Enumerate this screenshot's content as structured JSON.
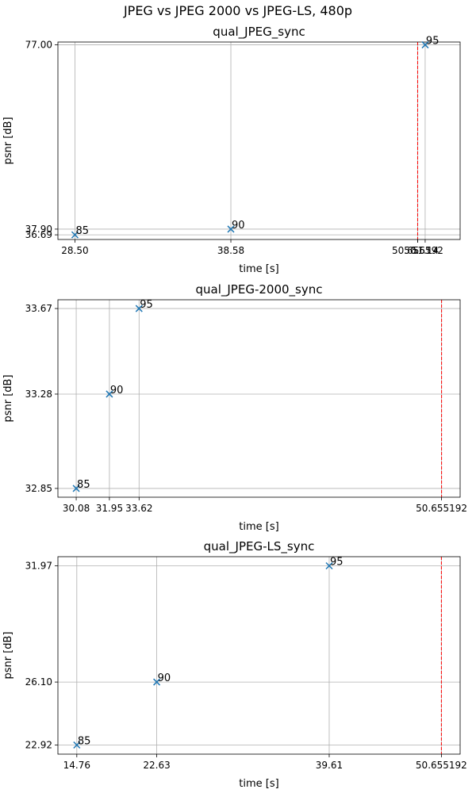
{
  "figure_title": "JPEG vs JPEG 2000 vs JPEG-LS, 480p",
  "chart_data": [
    {
      "type": "scatter",
      "title": "qual_JPEG_sync",
      "xlabel": "time [s]",
      "ylabel": "psnr [dB]",
      "xlim": [
        27.4,
        53.4
      ],
      "ylim": [
        35.7,
        77.6
      ],
      "x_ticks": [
        "28.50",
        "38.58",
        "50.655192",
        "50.65",
        "51.14"
      ],
      "y_ticks": [
        "77.00",
        "37.90",
        "36.69"
      ],
      "x_tick_values": [
        28.5,
        38.58,
        50.655192,
        50.65,
        51.14
      ],
      "y_tick_values": [
        77.0,
        37.9,
        36.69
      ],
      "points": [
        {
          "x": 28.5,
          "y": 36.69,
          "label": "85"
        },
        {
          "x": 38.58,
          "y": 37.9,
          "label": "90"
        },
        {
          "x": 51.14,
          "y": 77.0,
          "label": "95"
        }
      ],
      "vline": {
        "x": 50.655192,
        "color": "#ff0000",
        "style": "dashed"
      },
      "grid": true,
      "marker": "x",
      "marker_color": "#1f77b4"
    },
    {
      "type": "scatter",
      "title": "qual_JPEG-2000_sync",
      "xlabel": "time [s]",
      "ylabel": "psnr [dB]",
      "xlim": [
        29.05,
        51.7
      ],
      "ylim": [
        32.81,
        33.71
      ],
      "x_ticks": [
        "30.08",
        "31.95",
        "33.62",
        "50.655192"
      ],
      "y_ticks": [
        "33.67",
        "33.28",
        "32.85"
      ],
      "x_tick_values": [
        30.08,
        31.95,
        33.62,
        50.655192
      ],
      "y_tick_values": [
        33.67,
        33.28,
        32.85
      ],
      "points": [
        {
          "x": 30.08,
          "y": 32.85,
          "label": "85"
        },
        {
          "x": 31.95,
          "y": 33.28,
          "label": "90"
        },
        {
          "x": 33.62,
          "y": 33.67,
          "label": "95"
        }
      ],
      "vline": {
        "x": 50.655192,
        "color": "#ff0000",
        "style": "dashed"
      },
      "grid": true,
      "marker": "x",
      "marker_color": "#1f77b4"
    },
    {
      "type": "scatter",
      "title": "qual_JPEG-LS_sync",
      "xlabel": "time [s]",
      "ylabel": "psnr [dB]",
      "xlim": [
        12.9,
        52.5
      ],
      "ylim": [
        22.46,
        32.43
      ],
      "x_ticks": [
        "14.76",
        "22.63",
        "39.61",
        "50.655192"
      ],
      "y_ticks": [
        "31.97",
        "26.10",
        "22.92"
      ],
      "x_tick_values": [
        14.76,
        22.63,
        39.61,
        50.655192
      ],
      "y_tick_values": [
        31.97,
        26.1,
        22.92
      ],
      "points": [
        {
          "x": 14.76,
          "y": 22.92,
          "label": "85"
        },
        {
          "x": 22.63,
          "y": 26.1,
          "label": "90"
        },
        {
          "x": 39.61,
          "y": 31.97,
          "label": "95"
        }
      ],
      "vline": {
        "x": 50.655192,
        "color": "#ff0000",
        "style": "dashed"
      },
      "grid": true,
      "marker": "x",
      "marker_color": "#1f77b4"
    }
  ]
}
